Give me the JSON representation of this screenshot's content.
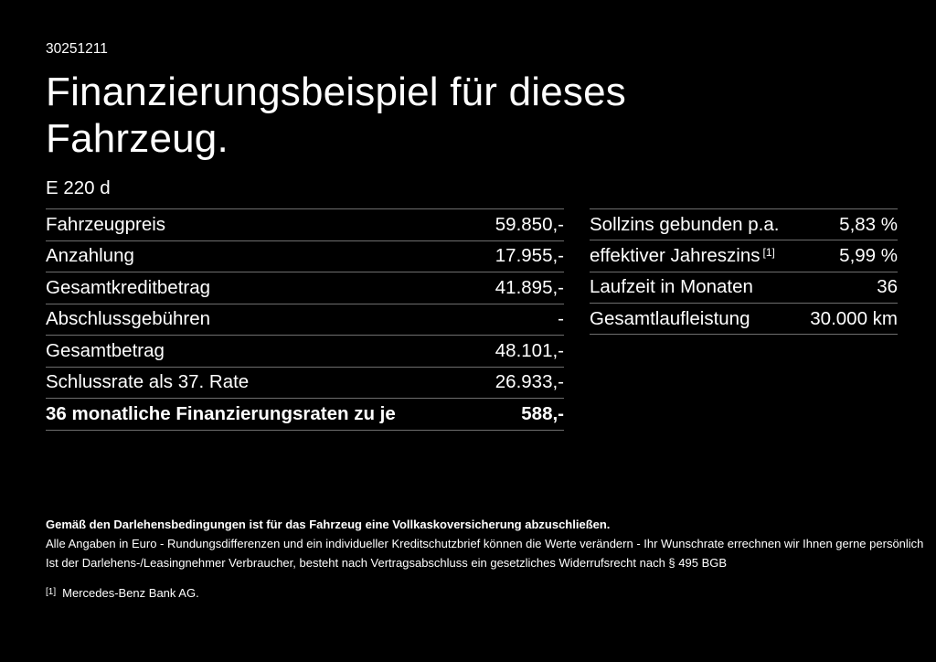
{
  "page": {
    "background_color": "#000000",
    "text_color": "#ffffff",
    "divider_color": "#6e6e6e"
  },
  "header": {
    "doc_id": "30251211",
    "title_line1": "Finanzierungsbeispiel für dieses",
    "title_line2": "Fahrzeug.",
    "model": "E 220 d"
  },
  "left_table": {
    "rows": [
      {
        "label": "Fahrzeugpreis",
        "value": "59.850,-"
      },
      {
        "label": "Anzahlung",
        "value": "17.955,-"
      },
      {
        "label": "Gesamtkreditbetrag",
        "value": "41.895,-"
      },
      {
        "label": "Abschlussgebühren",
        "value": "-"
      },
      {
        "label": "Gesamtbetrag",
        "value": "48.101,-"
      },
      {
        "label": "Schlussrate als 37. Rate",
        "value": "26.933,-"
      },
      {
        "label": "36 monatliche Finanzierungsraten zu je",
        "value": "588,-"
      }
    ]
  },
  "right_table": {
    "rows": [
      {
        "label": "Sollzins gebunden p.a.",
        "sup": "",
        "value": "5,83 %"
      },
      {
        "label": "effektiver Jahreszins",
        "sup": "[1]",
        "value": "5,99 %"
      },
      {
        "label": "Laufzeit in Monaten",
        "sup": "",
        "value": "36"
      },
      {
        "label": "Gesamtlaufleistung",
        "sup": "",
        "value": "30.000 km"
      }
    ]
  },
  "footer": {
    "insurance_note": "Gemäß den Darlehensbedingungen ist für das Fahrzeug eine Vollkaskoversicherung abzuschließen.",
    "line1": "Alle Angaben in Euro - Rundungsdifferenzen und ein individueller Kreditschutzbrief können die Werte verändern - Ihr Wunschrate errechnen wir Ihnen gerne persönlich",
    "line2": "Ist der Darlehens-/Leasingnehmer Verbraucher, besteht nach Vertragsabschluss ein gesetzliches Widerrufsrecht nach § 495 BGB",
    "footnote_marker": "[1]",
    "footnote_text": "Mercedes-Benz Bank AG."
  }
}
